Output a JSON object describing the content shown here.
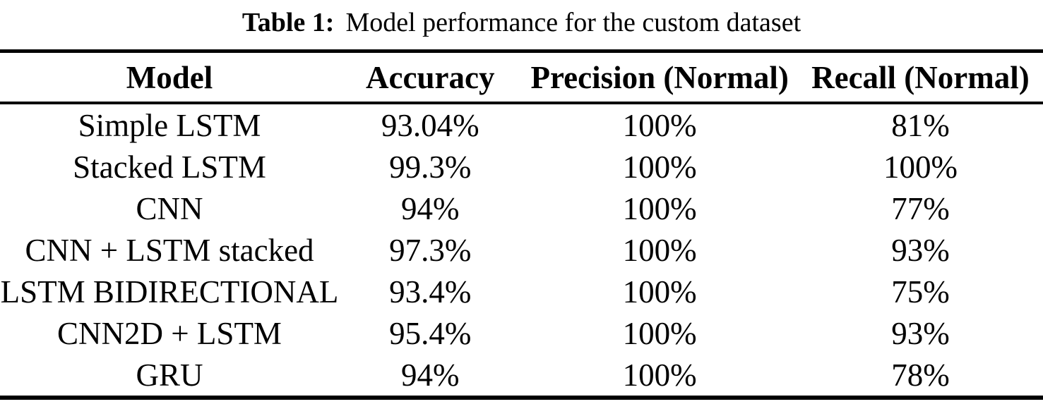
{
  "page": {
    "background_color": "#ffffff",
    "text_color": "#000000"
  },
  "caption": {
    "label": "Table 1:",
    "text": "Model performance for the custom dataset"
  },
  "table": {
    "headers": [
      "Model",
      "Accuracy",
      "Precision (Normal)",
      "Recall (Normal)"
    ],
    "rows": [
      {
        "model": "Simple LSTM",
        "accuracy": "93.04%",
        "precision": "100%",
        "recall": "81%"
      },
      {
        "model": "Stacked LSTM",
        "accuracy": "99.3%",
        "precision": "100%",
        "recall": "100%"
      },
      {
        "model": "CNN",
        "accuracy": "94%",
        "precision": "100%",
        "recall": "77%"
      },
      {
        "model": "CNN + LSTM stacked",
        "accuracy": "97.3%",
        "precision": "100%",
        "recall": "93%"
      },
      {
        "model": "LSTM BIDIRECTIONAL",
        "accuracy": "93.4%",
        "precision": "100%",
        "recall": "75%"
      },
      {
        "model": "CNN2D + LSTM",
        "accuracy": "95.4%",
        "precision": "100%",
        "recall": "93%"
      },
      {
        "model": "GRU",
        "accuracy": "94%",
        "precision": "100%",
        "recall": "78%"
      }
    ]
  },
  "chart_data": {
    "type": "table",
    "title": "Table 1: Model performance for the custom dataset",
    "columns": [
      "Model",
      "Accuracy",
      "Precision (Normal)",
      "Recall (Normal)"
    ],
    "rows": [
      [
        "Simple LSTM",
        "93.04%",
        "100%",
        "81%"
      ],
      [
        "Stacked LSTM",
        "99.3%",
        "100%",
        "100%"
      ],
      [
        "CNN",
        "94%",
        "100%",
        "77%"
      ],
      [
        "CNN + LSTM stacked",
        "97.3%",
        "100%",
        "93%"
      ],
      [
        "LSTM BIDIRECTIONAL",
        "93.4%",
        "100%",
        "75%"
      ],
      [
        "CNN2D + LSTM",
        "95.4%",
        "100%",
        "93%"
      ],
      [
        "GRU",
        "94%",
        "100%",
        "78%"
      ]
    ]
  }
}
